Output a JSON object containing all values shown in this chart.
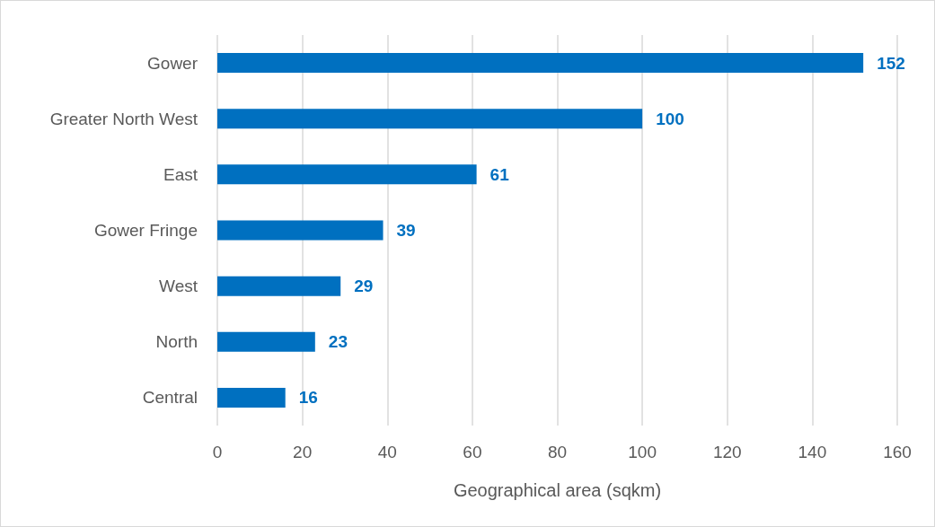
{
  "chart_data": {
    "type": "bar",
    "orientation": "horizontal",
    "xlabel": "Geographical area (sqkm)",
    "categories": [
      "Gower",
      "Greater North West",
      "East",
      "Gower Fringe",
      "West",
      "North",
      "Central"
    ],
    "values": [
      152,
      100,
      61,
      39,
      29,
      23,
      16
    ],
    "color": "#0070c0",
    "xlim": [
      0,
      160
    ],
    "xticks": [
      0,
      20,
      40,
      60,
      80,
      100,
      120,
      140,
      160
    ],
    "grid": "x",
    "data_labels": true
  }
}
